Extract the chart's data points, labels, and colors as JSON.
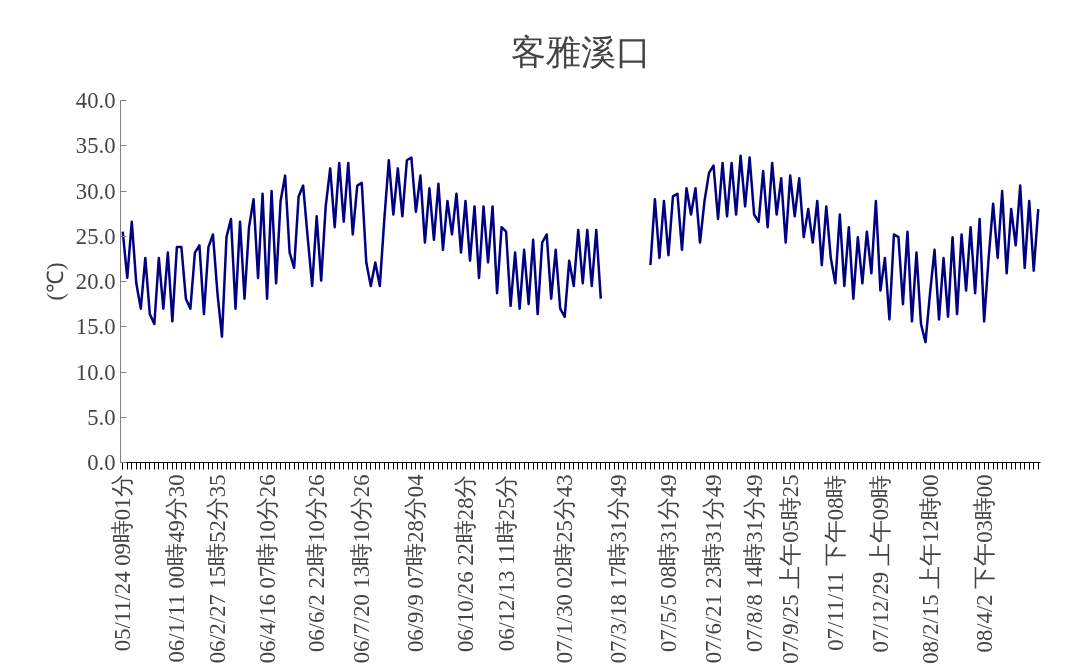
{
  "chart_data": {
    "type": "line",
    "title": "客雅溪口",
    "ylabel": "(℃)",
    "categories": [
      "05/11/24 09時01分",
      null,
      null,
      null,
      null,
      null,
      null,
      null,
      null,
      null,
      null,
      null,
      "06/1/11 00時49分30",
      null,
      null,
      null,
      null,
      null,
      null,
      null,
      null,
      "06/2/27 15時52分35",
      null,
      null,
      null,
      null,
      null,
      null,
      null,
      null,
      null,
      null,
      "06/4/16 07時10分26",
      null,
      null,
      null,
      null,
      null,
      null,
      null,
      null,
      null,
      null,
      "06/6/2 22時10分26",
      null,
      null,
      null,
      null,
      null,
      null,
      null,
      null,
      null,
      "06/7/20 13時10分26",
      null,
      null,
      null,
      null,
      null,
      null,
      null,
      null,
      null,
      null,
      null,
      "06/9/9 07時28分04",
      null,
      null,
      null,
      null,
      null,
      null,
      null,
      null,
      null,
      null,
      "06/10/26 22時28分",
      null,
      null,
      null,
      null,
      null,
      null,
      null,
      null,
      "06/12/13 11時25分",
      null,
      null,
      null,
      null,
      null,
      null,
      null,
      null,
      null,
      null,
      null,
      null,
      "07/1/30 02時25分43",
      null,
      null,
      null,
      null,
      null,
      null,
      null,
      null,
      null,
      null,
      null,
      "07/3/18 17時31分49",
      null,
      null,
      null,
      null,
      null,
      null,
      null,
      null,
      null,
      null,
      "07/5/5 08時31分49",
      null,
      null,
      null,
      null,
      null,
      null,
      null,
      null,
      null,
      "07/6/21 23時31分49",
      null,
      null,
      null,
      null,
      null,
      null,
      null,
      null,
      "07/8/8 14時31分49",
      null,
      null,
      null,
      null,
      null,
      null,
      null,
      "07/9/25 上午05時25",
      null,
      null,
      null,
      null,
      null,
      null,
      null,
      null,
      null,
      "07/11/11 下午08時",
      null,
      null,
      null,
      null,
      null,
      null,
      null,
      null,
      null,
      "07/12/29 上午09時",
      null,
      null,
      null,
      null,
      null,
      null,
      null,
      null,
      null,
      null,
      "08/2/15 上午12時00",
      null,
      null,
      null,
      null,
      null,
      null,
      null,
      null,
      null,
      null,
      null,
      "08/4/2 下午03時00",
      null,
      null,
      null,
      null,
      null,
      null,
      null,
      null,
      null,
      null,
      null,
      null
    ],
    "series": [
      {
        "color": "#000080",
        "values": [
          25.5,
          20.4,
          26.6,
          19.8,
          17.0,
          22.6,
          16.4,
          15.3,
          22.6,
          17.0,
          23.2,
          15.6,
          23.8,
          23.8,
          18.1,
          17.0,
          23.2,
          24.0,
          16.4,
          23.8,
          25.2,
          18.7,
          13.9,
          24.9,
          26.9,
          17.0,
          26.6,
          18.1,
          26.0,
          29.1,
          20.4,
          29.7,
          18.1,
          30.0,
          19.8,
          28.9,
          31.7,
          23.2,
          21.5,
          29.4,
          30.6,
          24.9,
          19.5,
          27.2,
          20.1,
          28.3,
          32.5,
          26.0,
          33.1,
          26.6,
          33.1,
          25.2,
          30.6,
          30.9,
          22.1,
          19.5,
          22.1,
          19.5,
          26.9,
          33.4,
          27.4,
          32.5,
          27.2,
          33.4,
          33.7,
          27.7,
          31.7,
          24.3,
          30.3,
          24.6,
          30.8,
          23.5,
          28.9,
          25.2,
          29.7,
          23.2,
          28.9,
          22.3,
          28.3,
          20.4,
          28.3,
          22.1,
          28.3,
          18.7,
          26.0,
          25.5,
          17.3,
          23.2,
          17.0,
          23.5,
          17.5,
          24.6,
          16.4,
          24.3,
          25.2,
          18.1,
          23.5,
          17.0,
          16.1,
          22.3,
          19.5,
          25.7,
          19.8,
          25.7,
          19.5,
          25.7,
          18.1,
          null,
          null,
          null,
          null,
          null,
          null,
          null,
          null,
          null,
          null,
          21.8,
          29.1,
          22.6,
          28.9,
          22.9,
          29.4,
          29.7,
          23.5,
          30.3,
          27.4,
          30.3,
          24.3,
          28.9,
          32.0,
          32.8,
          26.9,
          33.1,
          27.2,
          33.1,
          27.4,
          33.9,
          28.3,
          33.7,
          27.4,
          26.6,
          32.2,
          26.0,
          33.1,
          27.4,
          31.4,
          24.3,
          31.7,
          27.2,
          31.4,
          24.9,
          28.0,
          24.3,
          28.9,
          21.8,
          28.3,
          22.6,
          19.8,
          27.4,
          19.5,
          26.0,
          18.1,
          24.9,
          19.8,
          25.5,
          20.9,
          28.9,
          19.0,
          22.6,
          15.8,
          25.2,
          24.9,
          17.5,
          25.5,
          15.6,
          23.2,
          15.3,
          13.3,
          18.7,
          23.5,
          15.8,
          22.6,
          16.1,
          24.9,
          16.4,
          25.2,
          19.0,
          26.0,
          18.7,
          26.9,
          15.6,
          22.6,
          28.6,
          22.6,
          30.0,
          20.9,
          28.0,
          24.0,
          30.6,
          21.5,
          28.9,
          21.2,
          28.0
        ]
      }
    ],
    "ylim": [
      0,
      40
    ],
    "yticks": [
      {
        "value": 0,
        "label": "0.0"
      },
      {
        "value": 5,
        "label": "5.0"
      },
      {
        "value": 10,
        "label": "10.0"
      },
      {
        "value": 15,
        "label": "15.0"
      },
      {
        "value": 20,
        "label": "20.0"
      },
      {
        "value": 25,
        "label": "25.0"
      },
      {
        "value": 30,
        "label": "30.0"
      },
      {
        "value": 35,
        "label": "35.0"
      },
      {
        "value": 40,
        "label": "40.0"
      }
    ]
  }
}
